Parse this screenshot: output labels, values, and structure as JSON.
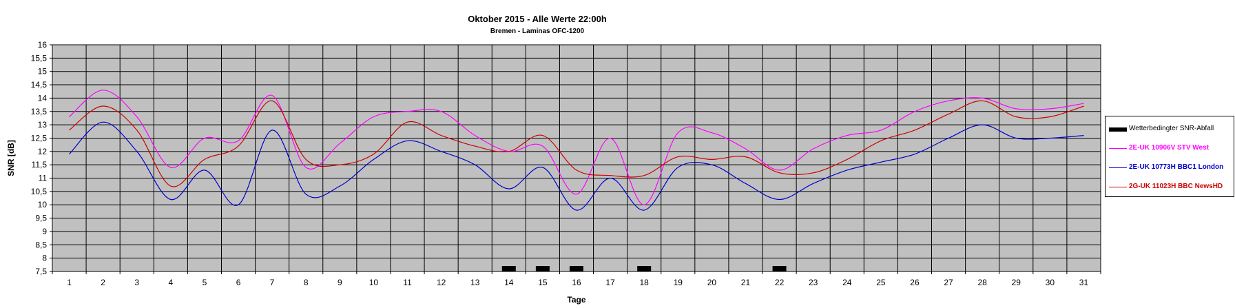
{
  "chart_data": {
    "type": "line",
    "title": "Oktober 2015 - Alle Werte 22:00h",
    "subtitle": "Bremen - Laminas OFC-1200",
    "xlabel": "Tage",
    "ylabel": "SNR [dB]",
    "ylim": [
      7.5,
      16
    ],
    "yticks": [
      "7,5",
      "8",
      "8,5",
      "9",
      "9,5",
      "10",
      "10,5",
      "11",
      "11,5",
      "12",
      "12,5",
      "13",
      "13,5",
      "14",
      "14,5",
      "15",
      "15,5",
      "16"
    ],
    "categories": [
      "1",
      "2",
      "3",
      "4",
      "5",
      "6",
      "7",
      "8",
      "9",
      "10",
      "11",
      "12",
      "13",
      "14",
      "15",
      "16",
      "17",
      "18",
      "19",
      "20",
      "21",
      "22",
      "23",
      "24",
      "25",
      "26",
      "27",
      "28",
      "29",
      "30",
      "31"
    ],
    "grid": true,
    "plot_background": "#c0c0c0",
    "legend_position": "right",
    "series": [
      {
        "name": "2E-UK 10906V STV West",
        "color": "#ff00ff",
        "values": [
          13.3,
          14.3,
          13.3,
          11.4,
          12.5,
          12.4,
          14.1,
          11.4,
          12.3,
          13.3,
          13.5,
          13.5,
          12.6,
          12.0,
          12.2,
          10.4,
          12.5,
          10.0,
          12.7,
          12.7,
          12.1,
          11.3,
          12.1,
          12.6,
          12.8,
          13.5,
          13.9,
          14.0,
          13.6,
          13.6,
          13.8
        ]
      },
      {
        "name": "2E-UK 10773H BBC1 London",
        "color": "#0000cc",
        "values": [
          11.9,
          13.1,
          12.0,
          10.2,
          11.3,
          10.0,
          12.8,
          10.4,
          10.7,
          11.7,
          12.4,
          12.0,
          11.5,
          10.6,
          11.4,
          9.8,
          11.0,
          9.8,
          11.4,
          11.5,
          10.8,
          10.2,
          10.8,
          11.3,
          11.6,
          11.9,
          12.5,
          13.0,
          12.5,
          12.5,
          12.6
        ]
      },
      {
        "name": "2G-UK 11023H BBC NewsHD",
        "color": "#cc0000",
        "values": [
          12.8,
          13.7,
          12.8,
          10.7,
          11.7,
          12.2,
          13.9,
          11.7,
          11.5,
          11.9,
          13.1,
          12.6,
          12.2,
          12.0,
          12.6,
          11.3,
          11.1,
          11.1,
          11.8,
          11.7,
          11.8,
          11.2,
          11.2,
          11.7,
          12.4,
          12.8,
          13.4,
          13.9,
          13.3,
          13.3,
          13.7
        ]
      }
    ],
    "events": {
      "name": "Wetterbedingter SNR-Abfall",
      "color": "#000000",
      "days": [
        "14",
        "15",
        "16",
        "18",
        "22"
      ]
    }
  }
}
